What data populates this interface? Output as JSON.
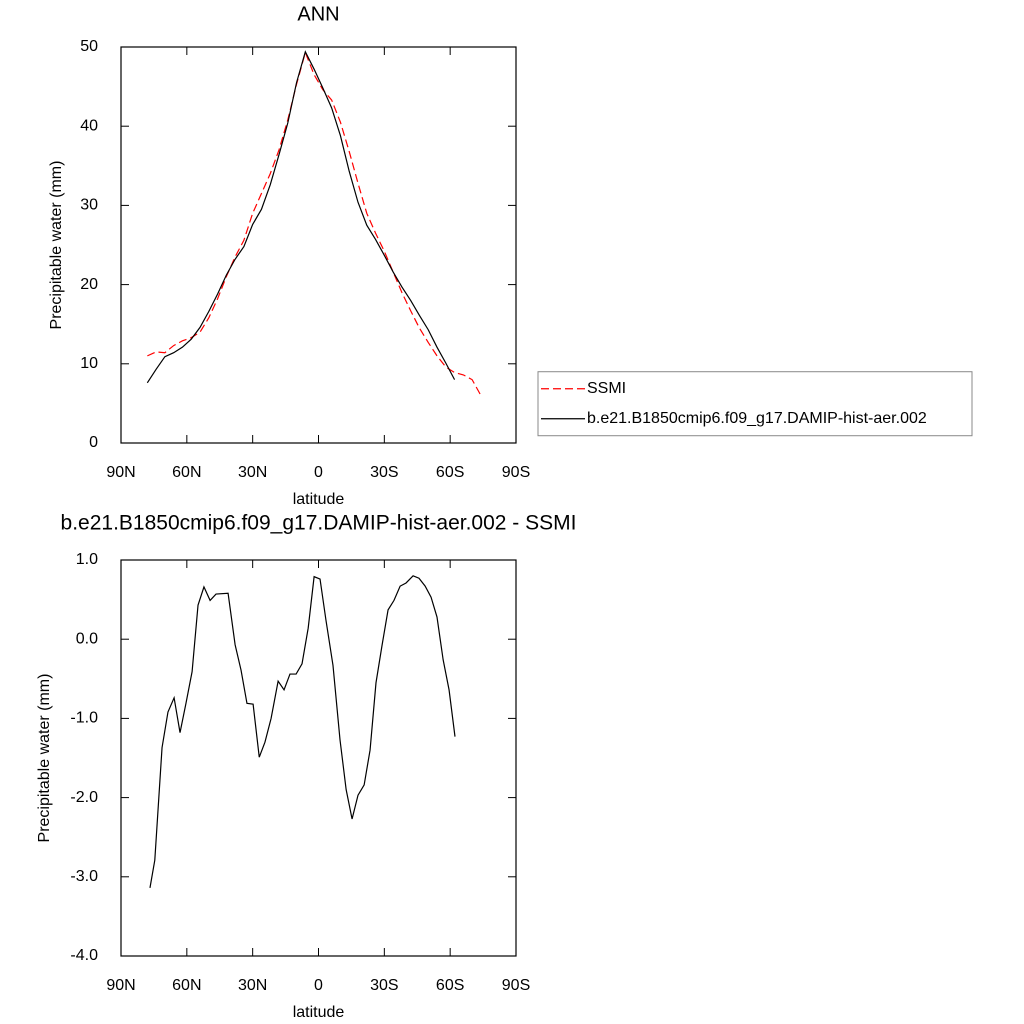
{
  "chart_data": [
    {
      "type": "line",
      "title": "ANN",
      "x_label": "latitude",
      "y_label": "Precipitable water (mm)",
      "x": [
        78,
        74,
        70,
        66,
        62,
        58,
        54,
        50,
        46,
        42,
        38,
        34,
        30,
        26,
        22,
        18,
        14,
        10,
        6,
        2,
        -2,
        -6,
        -10,
        -14,
        -18,
        -22,
        -26,
        -30,
        -34,
        -38,
        -42,
        -46,
        -50,
        -54,
        -58,
        -62,
        -66,
        -70,
        -74
      ],
      "series": [
        {
          "name": "SSMI",
          "color": "#ff0000",
          "line_style": "dashed",
          "values": [
            11.0,
            11.5,
            11.4,
            12.3,
            12.9,
            13.3,
            14.0,
            15.8,
            18.2,
            21.0,
            23.5,
            25.6,
            29.0,
            31.5,
            34.0,
            37.0,
            40.8,
            45.3,
            49.3,
            46.5,
            44.6,
            43.3,
            40.5,
            36.8,
            32.8,
            29.0,
            26.5,
            24.2,
            21.6,
            19.0,
            16.7,
            14.5,
            12.7,
            11.0,
            9.6,
            8.9,
            8.6,
            8.0,
            6.0
          ]
        },
        {
          "name": "b.e21.B1850cmip6.f09_g17.DAMIP-hist-aer.002",
          "color": "#000000",
          "line_style": "solid",
          "values": [
            7.6,
            9.3,
            10.9,
            11.4,
            12.1,
            13.1,
            14.6,
            16.6,
            18.8,
            21.2,
            23.2,
            24.8,
            27.6,
            29.5,
            32.6,
            36.4,
            40.4,
            45.5,
            49.4,
            47.2,
            44.8,
            42.3,
            38.8,
            34.3,
            30.4,
            27.5,
            25.7,
            23.7,
            21.6,
            19.7,
            18.0,
            16.1,
            14.3,
            12.1,
            10.1,
            8.0,
            null,
            null,
            null
          ]
        }
      ],
      "xlim": [
        90,
        -90
      ],
      "xticks": [
        {
          "value": 90,
          "label": "90N"
        },
        {
          "value": 60,
          "label": "60N"
        },
        {
          "value": 30,
          "label": "30N"
        },
        0,
        {
          "value": -30,
          "label": "30S"
        },
        {
          "value": -60,
          "label": "60S"
        },
        {
          "value": -90,
          "label": "90S"
        }
      ],
      "ylim": [
        0,
        50
      ],
      "yticks": [
        0,
        10,
        20,
        30,
        40,
        50
      ],
      "legend": "right",
      "grid": false
    },
    {
      "type": "line",
      "title": "b.e21.B1850cmip6.f09_g17.DAMIP-hist-aer.002 - SSMI",
      "x_label": "latitude",
      "y_label": "Precipitable water (mm)",
      "x": [
        76.8,
        74.6,
        71.3,
        68.6,
        65.8,
        63.1,
        60.4,
        57.6,
        54.9,
        52.2,
        49.4,
        46.7,
        41.2,
        38,
        35.3,
        32.6,
        29.8,
        27,
        24.4,
        21.6,
        18.4,
        15.7,
        13,
        10.2,
        7.5,
        4.7,
        2,
        -0.7,
        -3.4,
        -6.6,
        -9.8,
        -12.6,
        -15.3,
        -18,
        -20.8,
        -23.5,
        -26.2,
        -29,
        -31.7,
        -34.4,
        -37.2,
        -39.9,
        -43.1,
        -45.8,
        -48.6,
        -51.3,
        -54,
        -56.8,
        -59.5,
        -62.2
      ],
      "values": [
        -3.14,
        -2.79,
        -1.37,
        -0.92,
        -0.74,
        -1.18,
        -0.81,
        -0.41,
        0.43,
        0.66,
        0.49,
        0.57,
        0.58,
        -0.07,
        -0.39,
        -0.81,
        -0.82,
        -1.49,
        -1.3,
        -1.0,
        -0.53,
        -0.64,
        -0.44,
        -0.44,
        -0.31,
        0.14,
        0.79,
        0.76,
        0.24,
        -0.33,
        -1.27,
        -1.9,
        -2.27,
        -1.97,
        -1.84,
        -1.4,
        -0.55,
        -0.07,
        0.37,
        0.49,
        0.67,
        0.71,
        0.8,
        0.77,
        0.67,
        0.53,
        0.28,
        -0.26,
        -0.64,
        -1.23
      ],
      "color": "#000000",
      "xlim": [
        90,
        -90
      ],
      "xticks": [
        {
          "value": 90,
          "label": "90N"
        },
        {
          "value": 60,
          "label": "60N"
        },
        {
          "value": 30,
          "label": "30N"
        },
        0,
        {
          "value": -30,
          "label": "30S"
        },
        {
          "value": -60,
          "label": "60S"
        },
        {
          "value": -90,
          "label": "90S"
        }
      ],
      "ylim": [
        -4,
        1
      ],
      "yticks": [
        {
          "value": -4,
          "label": "-4.0"
        },
        {
          "value": -3,
          "label": "-3.0"
        },
        {
          "value": -2,
          "label": "-2.0"
        },
        {
          "value": -1,
          "label": "-1.0"
        },
        {
          "value": 0,
          "label": "0.0"
        },
        {
          "value": 1,
          "label": "1.0"
        }
      ],
      "grid": false
    }
  ]
}
